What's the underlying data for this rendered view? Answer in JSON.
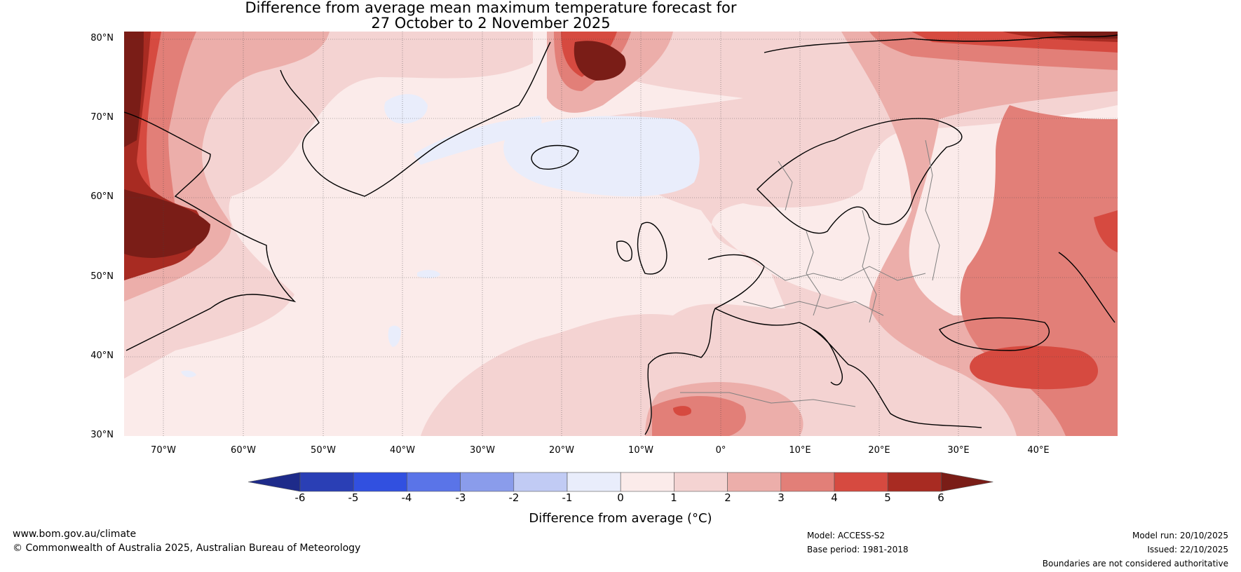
{
  "title": {
    "line1": "Difference from average mean maximum temperature forecast for",
    "line2": "27 October to 2 November 2025"
  },
  "map": {
    "lat_labels": [
      "80°N",
      "70°N",
      "60°N",
      "50°N",
      "40°N",
      "30°N"
    ],
    "lon_labels": [
      "70°W",
      "60°W",
      "50°W",
      "40°W",
      "30°W",
      "20°W",
      "10°W",
      "0°",
      "10°E",
      "20°E",
      "30°E",
      "40°E"
    ],
    "extent": {
      "lon_min": -75,
      "lon_max": 50,
      "lat_min": 30,
      "lat_max": 81
    }
  },
  "colorbar": {
    "label": "Difference from average (°C)",
    "ticks": [
      "-6",
      "-5",
      "-4",
      "-3",
      "-2",
      "-1",
      "0",
      "1",
      "2",
      "3",
      "4",
      "5",
      "6"
    ],
    "colors": [
      "#1e2b8a",
      "#2a3fb5",
      "#3150e0",
      "#5a74e8",
      "#8a9ceb",
      "#c1cbf4",
      "#e9edfb",
      "#fbebea",
      "#f4d3d2",
      "#ecaeaa",
      "#e27f78",
      "#d64a40",
      "#a82b22",
      "#7a1d17"
    ]
  },
  "footer": {
    "website": "www.bom.gov.au/climate",
    "copyright": "© Commonwealth of Australia 2025, Australian Bureau of Meteorology",
    "model": "Model: ACCESS-S2",
    "base_period": "Base period: 1981-2018",
    "model_run": "Model run: 20/10/2025",
    "issued": "Issued: 22/10/2025",
    "disclaimer": "Boundaries are not considered authoritative"
  }
}
